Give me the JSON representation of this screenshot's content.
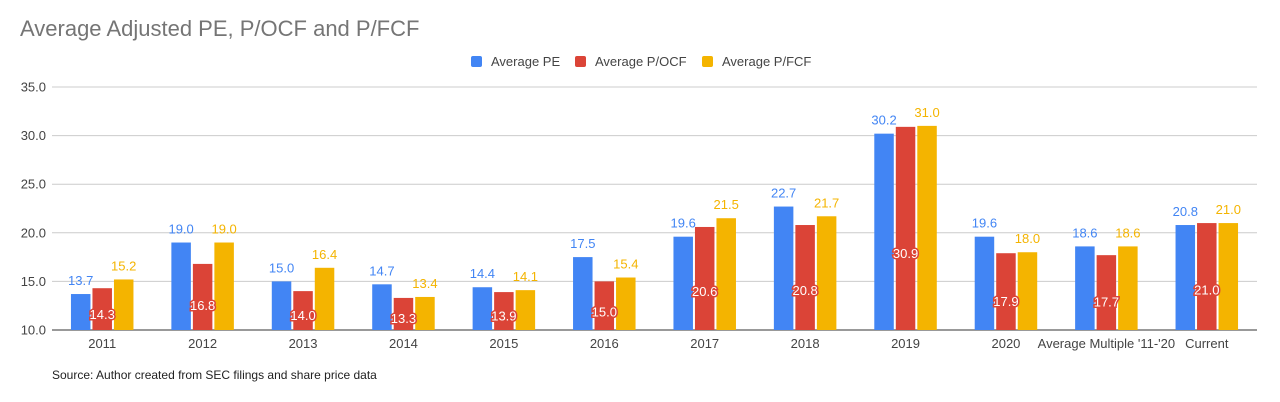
{
  "chart_data": {
    "type": "bar",
    "title": "Average Adjusted PE, P/OCF and P/FCF",
    "source": "Source: Author created from SEC filings and share price data",
    "xlabel": "",
    "ylabel": "",
    "ylim": [
      10,
      35
    ],
    "yticks": [
      "10.0",
      "15.0",
      "20.0",
      "25.0",
      "30.0",
      "35.0"
    ],
    "grid": true,
    "legend_position": "top",
    "categories": [
      "2011",
      "2012",
      "2013",
      "2014",
      "2015",
      "2016",
      "2017",
      "2018",
      "2019",
      "2020",
      "Average Multiple '11-'20",
      "Current"
    ],
    "series": [
      {
        "name": "Average PE",
        "color": "#4285f4",
        "values": [
          13.7,
          19.0,
          15.0,
          14.7,
          14.4,
          17.5,
          19.6,
          22.7,
          30.2,
          19.6,
          18.6,
          20.8
        ],
        "labels": [
          "13.7",
          "19.0",
          "15.0",
          "14.7",
          "14.4",
          "17.5",
          "19.6",
          "22.7",
          "30.2",
          "19.6",
          "18.6",
          "20.8"
        ]
      },
      {
        "name": "Average P/OCF",
        "color": "#db4437",
        "values": [
          14.3,
          16.8,
          14.0,
          13.3,
          13.9,
          15.0,
          20.6,
          20.8,
          30.9,
          17.9,
          17.7,
          21.0
        ],
        "labels": [
          "14.3",
          "16.8",
          "14.0",
          "13.3",
          "13.9",
          "15.0",
          "20.6",
          "20.8",
          "30.9",
          "17.9",
          "17.7",
          "21.0"
        ]
      },
      {
        "name": "Average P/FCF",
        "color": "#f4b400",
        "values": [
          15.2,
          19.0,
          16.4,
          13.4,
          14.1,
          15.4,
          21.5,
          21.7,
          31.0,
          18.0,
          18.6,
          21.0
        ],
        "labels": [
          "15.2",
          "19.0",
          "16.4",
          "13.4",
          "14.1",
          "15.4",
          "21.5",
          "21.7",
          "31.0",
          "18.0",
          "18.6",
          "21.0"
        ]
      }
    ]
  }
}
